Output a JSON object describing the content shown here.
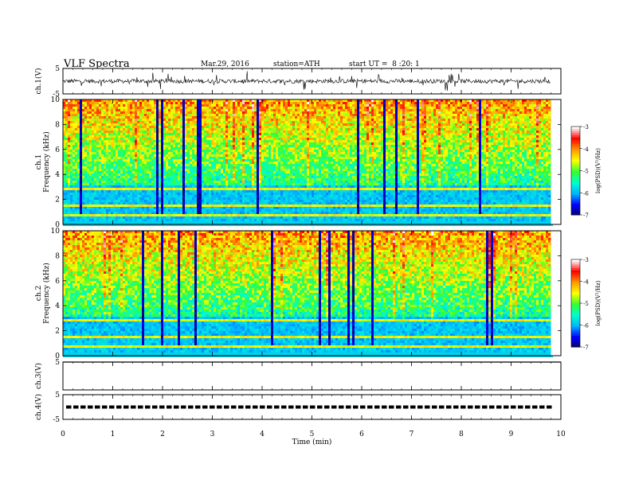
{
  "header": {
    "title": "VLF Spectra",
    "date": "Mar.29, 2016",
    "station": "station=ATH",
    "start_ut": "start UT =  8 :20: 1"
  },
  "colors": {
    "axis": "#000000",
    "spectrogram_colormap": [
      "#0a0066",
      "#0000ff",
      "#00b4ff",
      "#00ffcc",
      "#33ff33",
      "#ffff00",
      "#ff9900",
      "#ff0000",
      "#ffffff"
    ]
  },
  "chart_data": [
    {
      "type": "line",
      "name": "ch1-waveform",
      "ylabel": "ch.1(V)",
      "ylim": [
        -5,
        5
      ],
      "yticks": [
        5,
        -5
      ],
      "xlim": [
        0,
        10
      ],
      "x_end": 9.8,
      "baseline": 0,
      "noise_amplitude": 0.8,
      "spike_amplitude": 3.5
    },
    {
      "type": "heatmap",
      "name": "ch1-spectrogram",
      "ylabel_lines": [
        "ch.1",
        "Frequency (kHz)"
      ],
      "ylim": [
        0,
        10
      ],
      "yticks": [
        0,
        2,
        4,
        6,
        8,
        10
      ],
      "xlim": [
        0,
        10
      ],
      "x_end": 9.8,
      "colorbar": {
        "label": "log(PSD)(V²/Hz)",
        "ticks": [
          -3,
          -4,
          -5,
          -6,
          -7
        ],
        "range": [
          -7,
          -3
        ]
      }
    },
    {
      "type": "heatmap",
      "name": "ch2-spectrogram",
      "ylabel_lines": [
        "ch.2",
        "Frequency (kHz)"
      ],
      "ylim": [
        0,
        10
      ],
      "yticks": [
        0,
        2,
        4,
        6,
        8,
        10
      ],
      "xlim": [
        0,
        10
      ],
      "x_end": 9.8,
      "colorbar": {
        "label": "log(PSD)(V²/Hz)",
        "ticks": [
          -3,
          -4,
          -5,
          -6,
          -7
        ],
        "range": [
          -7,
          -3
        ]
      }
    },
    {
      "type": "line",
      "name": "ch3-waveform",
      "ylabel": "ch.3(V)",
      "ylim": [
        -5,
        5
      ],
      "yticks": [
        5
      ],
      "xlim": [
        0,
        10
      ],
      "trace_value": 5
    },
    {
      "type": "line",
      "name": "ch4-waveform",
      "ylabel": "ch.4(V)",
      "ylim": [
        -5,
        5
      ],
      "yticks": [
        5,
        -5
      ],
      "xlim": [
        0,
        10
      ],
      "x_end": 9.8,
      "trace_value": 0
    }
  ],
  "xaxis": {
    "label": "Time (min)",
    "ticks": [
      0,
      1,
      2,
      3,
      4,
      5,
      6,
      7,
      8,
      9,
      10
    ]
  }
}
